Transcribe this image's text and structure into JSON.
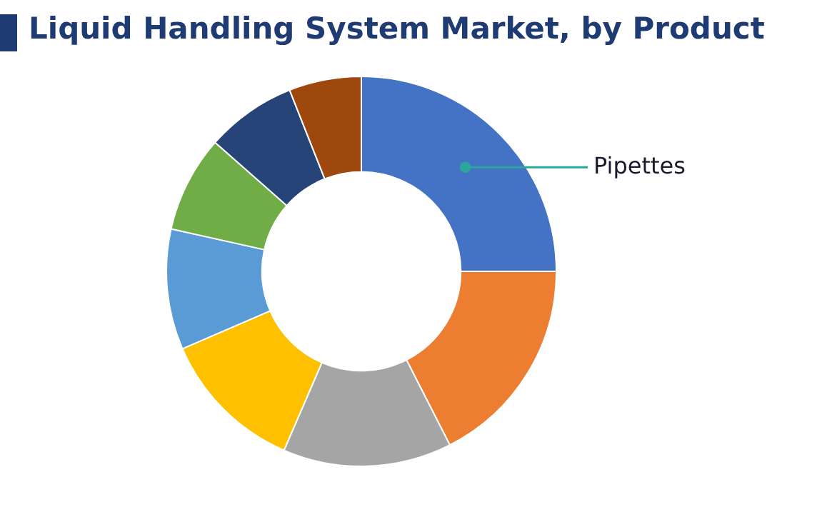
{
  "chart_data": {
    "type": "donut",
    "title": "Liquid Handling System Market, by Product",
    "categories": [
      "Pipettes",
      null,
      null,
      null,
      null,
      null,
      null,
      null
    ],
    "values": [
      25,
      17.5,
      14,
      12,
      10,
      8,
      7.5,
      6
    ],
    "colors": [
      "#4472c4",
      "#ed7d31",
      "#a5a5a5",
      "#ffc000",
      "#5b9bd5",
      "#70ad47",
      "#264478",
      "#9e480e"
    ]
  }
}
